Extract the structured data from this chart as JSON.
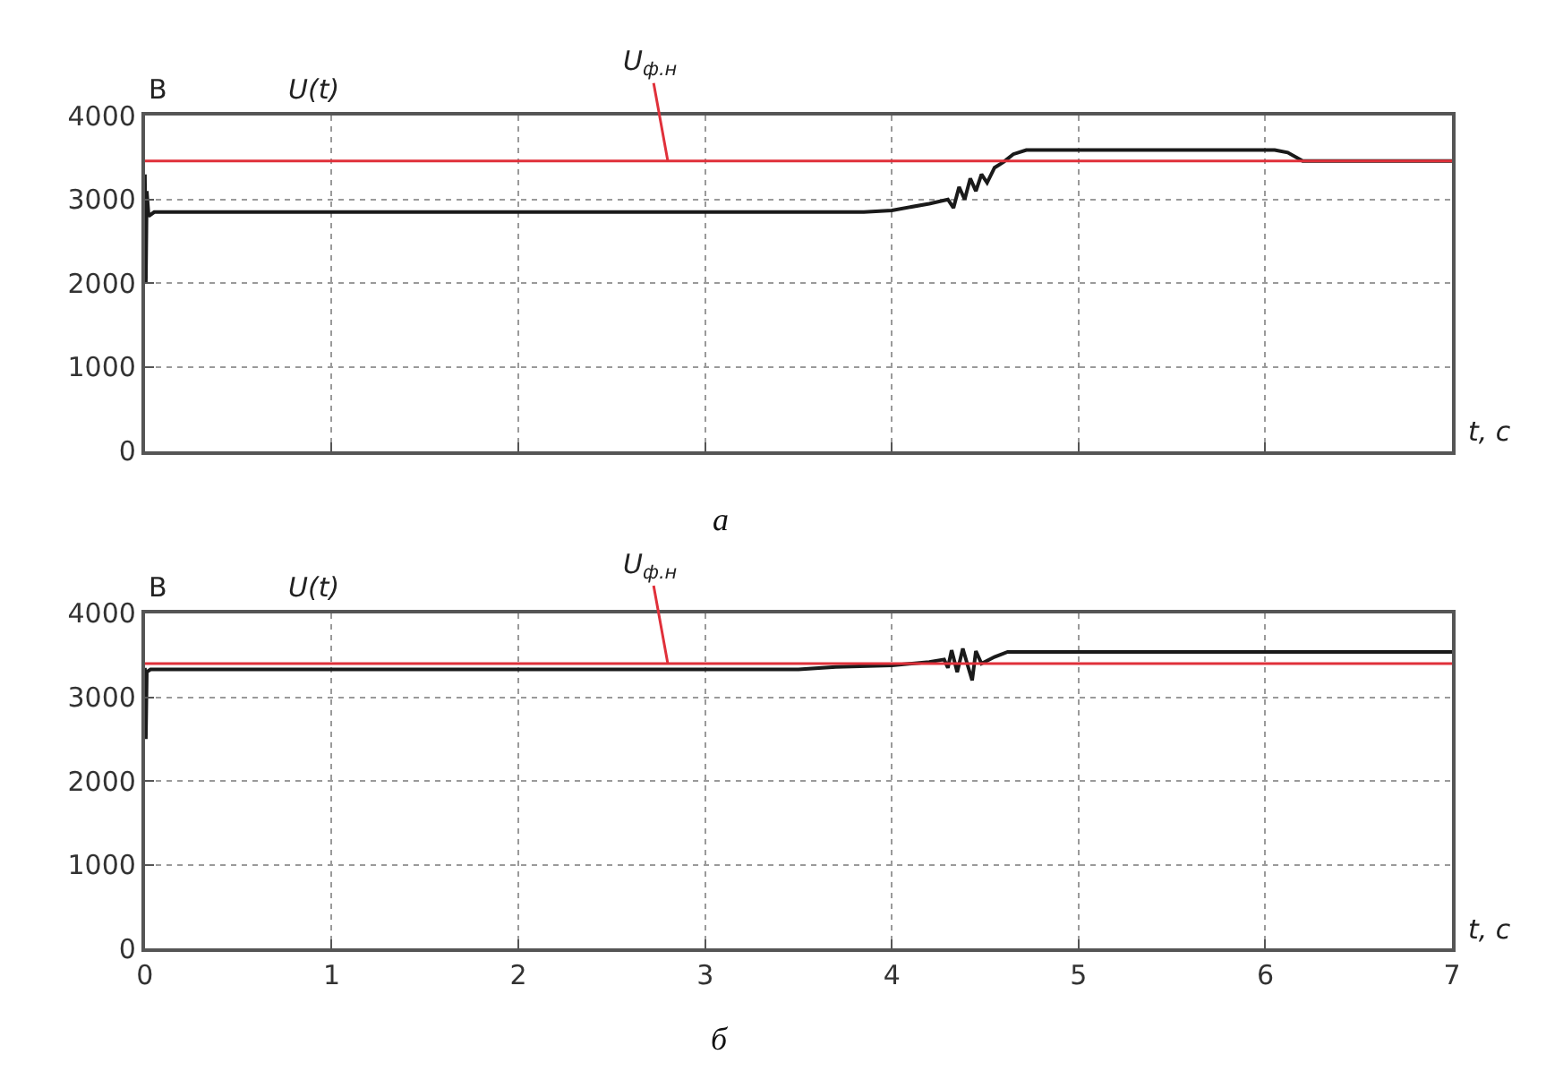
{
  "chart_data": [
    {
      "type": "line",
      "ylabel": "В",
      "xlabel": "t, с",
      "annotations": [
        "а"
      ],
      "xlim": [
        0,
        7
      ],
      "xticks": [
        0,
        1,
        2,
        3,
        4,
        5,
        6,
        7
      ],
      "ylim": [
        0,
        4000
      ],
      "yticks": [
        0,
        1000,
        2000,
        3000,
        4000
      ],
      "grid": true,
      "tick_labels": "y",
      "series": [
        {
          "name": "U(t)",
          "color": "#1a1a1a",
          "x": [
            0,
            0.005,
            0.01,
            0.02,
            0.05,
            3.85,
            4.0,
            4.2,
            4.3,
            4.33,
            4.36,
            4.39,
            4.42,
            4.45,
            4.48,
            4.51,
            4.55,
            4.6,
            4.65,
            4.72,
            6.05,
            6.12,
            6.2,
            7
          ],
          "values": [
            3300,
            2000,
            3100,
            2800,
            2850,
            2850,
            2870,
            2950,
            3000,
            2900,
            3150,
            3000,
            3250,
            3100,
            3300,
            3200,
            3380,
            3450,
            3540,
            3590,
            3590,
            3560,
            3460,
            3460
          ]
        }
      ],
      "ref_lines": [
        {
          "axis": "y",
          "value": 3460,
          "label": "U$_{ф.н}$",
          "color": "#e0303a"
        }
      ]
    },
    {
      "type": "line",
      "ylabel": "В",
      "xlabel": "t, с",
      "annotations": [
        "б"
      ],
      "xlim": [
        0,
        7
      ],
      "xticks": [
        0,
        1,
        2,
        3,
        4,
        5,
        6,
        7
      ],
      "ylim": [
        0,
        4000
      ],
      "yticks": [
        0,
        1000,
        2000,
        3000,
        4000
      ],
      "grid": true,
      "series": [
        {
          "name": "U(t)",
          "color": "#1a1a1a",
          "x": [
            0,
            0.005,
            0.01,
            0.03,
            3.5,
            3.7,
            4.0,
            4.2,
            4.28,
            4.3,
            4.32,
            4.35,
            4.38,
            4.41,
            4.43,
            4.45,
            4.48,
            4.55,
            4.62,
            7
          ],
          "values": [
            3350,
            2500,
            3300,
            3330,
            3330,
            3360,
            3380,
            3420,
            3450,
            3350,
            3560,
            3300,
            3580,
            3350,
            3200,
            3550,
            3400,
            3480,
            3540,
            3540
          ]
        }
      ],
      "ref_lines": [
        {
          "axis": "y",
          "value": 3400,
          "label": "U$_{ф.н}$",
          "color": "#e0303a"
        }
      ]
    }
  ]
}
